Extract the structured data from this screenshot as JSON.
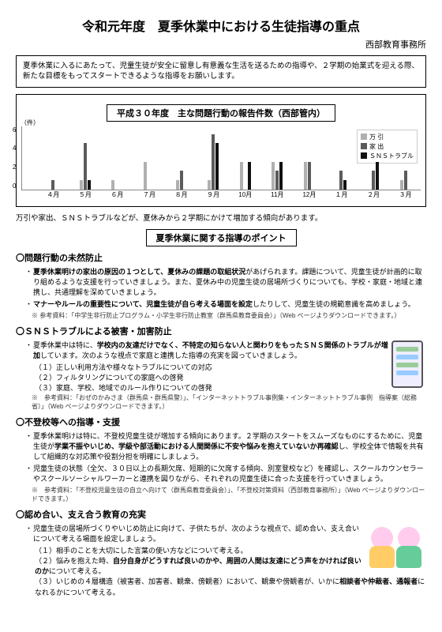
{
  "header": {
    "title": "令和元年度　夏季休業中における生徒指導の重点",
    "office": "西部教育事務所"
  },
  "intro": "夏季休業に入るにあたって、児童生徒が安全に留意し有意義な生活を送るための指導や、２学期の始業式を迎える際、新たな目標をもってスタートできるような指導をお願いします。",
  "chart": {
    "banner": "平成３０年度　主な問題行動の報告件数（西部管内）",
    "ylabel": "（件）",
    "yticks": [
      "6",
      "4",
      "2",
      "0"
    ],
    "ymax": 6,
    "legend": [
      {
        "label": "万 引",
        "color": "#b0b0b0"
      },
      {
        "label": "家 出",
        "color": "#5b5b5b"
      },
      {
        "label": "ＳＮＳトラブル",
        "color": "#111111"
      }
    ],
    "months": [
      "４月",
      "５月",
      "６月",
      "７月",
      "８月",
      "９月",
      "10月",
      "11月",
      "12月",
      "１月",
      "２月",
      "３月"
    ],
    "series": {
      "manbiki": [
        0,
        1,
        1,
        3,
        1,
        1,
        3,
        3,
        3,
        0,
        0,
        1
      ],
      "iede": [
        1,
        5,
        0,
        0,
        2,
        6,
        0,
        2,
        3,
        2,
        2,
        2
      ],
      "sns": [
        0,
        1,
        0,
        0,
        0,
        5,
        3,
        3,
        0,
        1,
        3,
        0
      ]
    },
    "colors": {
      "manbiki": "#b0b0b0",
      "iede": "#5b5b5b",
      "sns": "#111111"
    },
    "note": "万引や家出、ＳＮＳトラブルなどが、夏休みから２学期にかけて増加する傾向があります。"
  },
  "points_banner": "夏季休業に関する指導のポイント",
  "sections": [
    {
      "heading": "〇問題行動の未然防止",
      "bullets": [
        "<b>夏季休業明けの家出の原因の１つとして、夏休みの課題の取組状況</b>があげられます。課題について、児童生徒が計画的に取り組めるような支援を行っていきましょう。また、夏休み中の児童生徒の居場所づくりについても、学校・家庭・地域と連携し、共通理解を深めていきましょう。",
        "<b>マナーやルールの重要性について、児童生徒が自ら考える場面を設定</b>したりして、児童生徒の規範意識を高めましょう。"
      ],
      "ref": "※ 参考資料：「中学生非行防止プログラム・小学生非行防止教室（群馬県教育委員会）」（Web ページよりダウンロードできます。）"
    },
    {
      "heading": "〇ＳＮＳトラブルによる被害・加害防止",
      "illustration": "phone",
      "bullets": [
        "夏季休業中は特に、<b>学校内の友達だけでなく、不特定の知らない人と関わりをもったＳＮＳ関係のトラブルが増加</b>しています。次のような視点で家庭と連携した指導の充実を図っていきましょう。"
      ],
      "numbered": [
        "（１）正しい利用方法や様々なトラブルについての対応",
        "（２）フィルタリングについての家庭への啓発",
        "（３）家庭、学校、地域でのルール作りについての啓発"
      ],
      "ref": "※　参考資料：「おぜのかみさま（群馬県・群馬県警）」、「インターネットトラブル事例集・インターネットトラブル事例　指導案（総務省）」（Web ページよりダウンロードできます。）"
    },
    {
      "heading": "〇不登校等への指導・支援",
      "bullets": [
        "夏季休業明けは特に、不登校児童生徒が増加する傾向にあります。２学期のスタートをスムーズなものにするために、児童生徒が<b>学業不振やいじめ、学級や部活動における人間関係に不安や悩みを抱えていないか再確認</b>し、学校全体で情報を共有して組織的な対応策や役割分担を明確にしましょう。",
        "児童生徒の状態（全欠、３０日以上の長期欠席、短期的に欠席する傾向、別室登校など）を確認し、スクールカウンセラーやスクールソーシャルワーカーと連携を図りながら、それぞれの児童生徒に合った支援を行っていきましょう。"
      ],
      "ref": "※　参考資料：「不登校児童生徒の自立へ向けて（群馬県教育委員会）」、「不登校対策資料（西部教育事務所）」（Web ページよりダウンロードできます。）"
    },
    {
      "heading": "〇認め合い、支え合う教育の充実",
      "illustration": "kids",
      "bullets": [
        "児童生徒の居場所づくりやいじめ防止に向けて、子供たちが、次のような視点で、認め合い、支え合いについて考える場面を設定しましょう。"
      ],
      "numbered": [
        "（１）相手のことを大切にした言葉の使い方などについて考える。",
        "（２）悩みを抱えた時、<b>自分自身がどうすれば良いのかや、周囲の人間は友達にどう声をかければ良いのか</b>について考える。",
        "（３）いじめの４層構造（被害者、加害者、観衆、傍観者）において、観衆や傍観者が、いかに<b>相談者や仲裁者、通報者</b>になれるかについて考える。"
      ]
    }
  ]
}
